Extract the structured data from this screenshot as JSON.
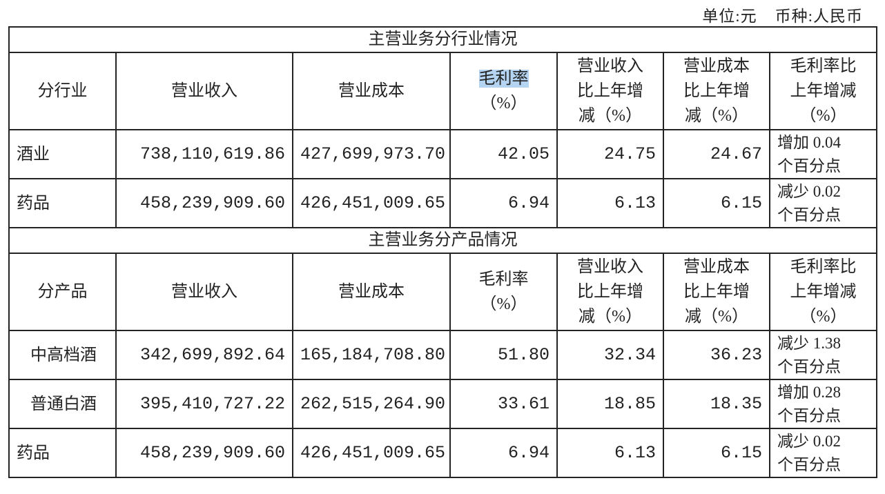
{
  "unit_label": "单位:元",
  "currency_label": "币种:人民币",
  "columns_note": "",
  "sections": [
    {
      "title": "主营业务分行业情况",
      "headers": [
        "分行业",
        "营业收入",
        "营业成本",
        "毛利率(%)",
        "营业收入比上年增减（%）",
        "营业成本比上年增减（%）",
        "毛利率比上年增减（%）"
      ],
      "header_lines": [
        [
          "分行业"
        ],
        [
          "营业收入"
        ],
        [
          "营业成本"
        ],
        [
          "毛利率",
          "（%）"
        ],
        [
          "营业收入",
          "比上年增",
          "减（%）"
        ],
        [
          "营业成本",
          "比上年增",
          "减（%）"
        ],
        [
          "毛利率比",
          "上年增减",
          "（%）"
        ]
      ],
      "highlighted_header": "毛利率",
      "rows": [
        {
          "name": "酒业",
          "revenue": "738,110,619.86",
          "cost": "427,699,973.70",
          "margin": "42.05",
          "rev_change": "24.75",
          "cost_change": "24.67",
          "margin_change": [
            "增加 0.04",
            "个百分点"
          ]
        },
        {
          "name": "药品",
          "revenue": "458,239,909.60",
          "cost": "426,451,009.65",
          "margin": "6.94",
          "rev_change": "6.13",
          "cost_change": "6.15",
          "margin_change": [
            "减少 0.02",
            "个百分点"
          ]
        }
      ]
    },
    {
      "title": "主营业务分产品情况",
      "header_lines": [
        [
          "分产品"
        ],
        [
          "营业收入"
        ],
        [
          "营业成本"
        ],
        [
          "毛利率",
          "（%）"
        ],
        [
          "营业收入",
          "比上年增",
          "减（%）"
        ],
        [
          "营业成本",
          "比上年增",
          "减（%）"
        ],
        [
          "毛利率比",
          "上年增减",
          "（%）"
        ]
      ],
      "rows": [
        {
          "name": "中高档酒",
          "revenue": "342,699,892.64",
          "cost": "165,184,708.80",
          "margin": "51.80",
          "rev_change": "32.34",
          "cost_change": "36.23",
          "margin_change": [
            "减少 1.38",
            "个百分点"
          ]
        },
        {
          "name": "普通白酒",
          "revenue": "395,410,727.22",
          "cost": "262,515,264.90",
          "margin": "33.61",
          "rev_change": "18.85",
          "cost_change": "18.35",
          "margin_change": [
            "增加 0.28",
            "个百分点"
          ]
        },
        {
          "name": "药品",
          "revenue": "458,239,909.60",
          "cost": "426,451,009.65",
          "margin": "6.94",
          "rev_change": "6.13",
          "cost_change": "6.15",
          "margin_change": [
            "减少 0.02",
            "个百分点"
          ]
        }
      ]
    }
  ]
}
